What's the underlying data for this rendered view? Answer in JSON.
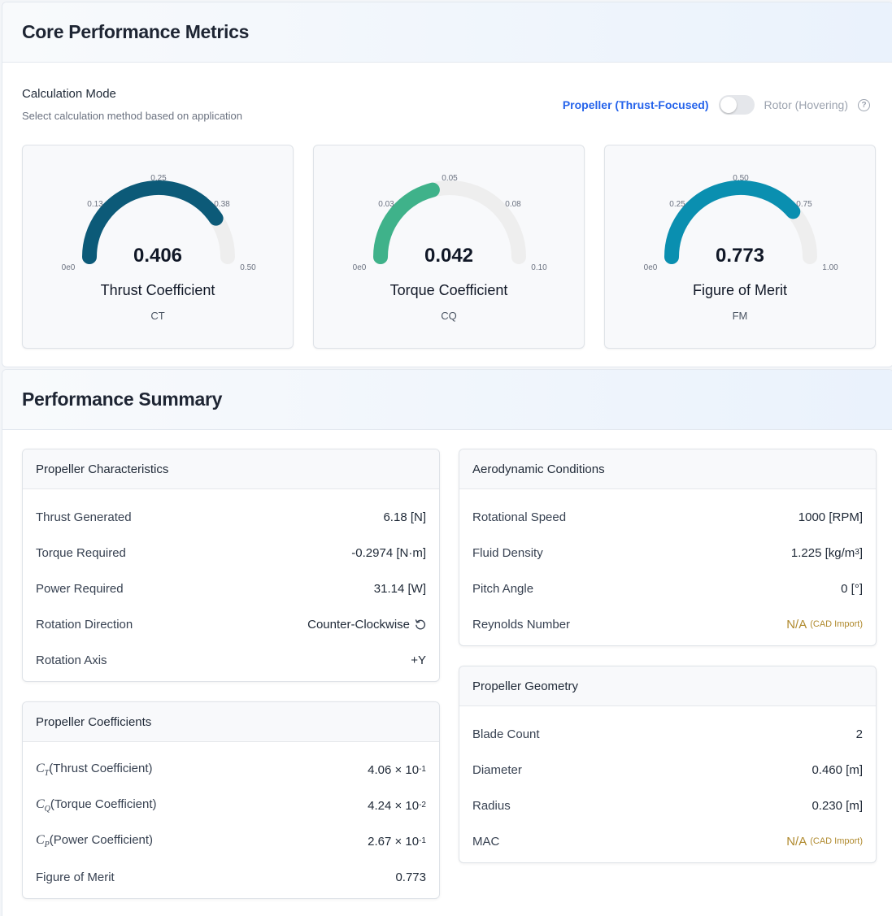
{
  "core": {
    "title": "Core Performance Metrics",
    "calc_mode_label": "Calculation Mode",
    "calc_mode_desc": "Select calculation method based on application",
    "mode_left": "Propeller (Thrust-Focused)",
    "mode_right": "Rotor (Hovering)",
    "help_glyph": "?"
  },
  "gauges": [
    {
      "value": "0.406",
      "name": "Thrust Coefficient",
      "symbol": "CT",
      "fraction": 0.812,
      "color": "#0c5a78",
      "ticks": [
        "0e0",
        "0.13",
        "0.25",
        "0.38",
        "0.50"
      ]
    },
    {
      "value": "0.042",
      "name": "Torque Coefficient",
      "symbol": "CQ",
      "fraction": 0.42,
      "color": "#3fb28a",
      "ticks": [
        "0e0",
        "0.03",
        "0.05",
        "0.08",
        "0.10"
      ]
    },
    {
      "value": "0.773",
      "name": "Figure of Merit",
      "symbol": "FM",
      "fraction": 0.773,
      "color": "#0a8fb0",
      "ticks": [
        "0e0",
        "0.25",
        "0.50",
        "0.75",
        "1.00"
      ]
    }
  ],
  "summary": {
    "title": "Performance Summary",
    "characteristics": {
      "title": "Propeller Characteristics",
      "thrust_label": "Thrust Generated",
      "thrust_value": "6.18 [N]",
      "torque_label": "Torque Required",
      "torque_value": "-0.2974 [N·m]",
      "power_label": "Power Required",
      "power_value": "31.14 [W]",
      "direction_label": "Rotation Direction",
      "direction_value": "Counter-Clockwise",
      "axis_label": "Rotation Axis",
      "axis_value": "+Y"
    },
    "coefficients": {
      "title": "Propeller Coefficients",
      "ct_sym": "C",
      "ct_sub": "T",
      "ct_label": "(Thrust Coefficient)",
      "ct_mant": "4.06 × 10",
      "ct_exp": "-1",
      "cq_sym": "C",
      "cq_sub": "Q",
      "cq_label": "(Torque Coefficient)",
      "cq_mant": "4.24 × 10",
      "cq_exp": "-2",
      "cp_sym": "C",
      "cp_sub": "P",
      "cp_label": "(Power Coefficient)",
      "cp_mant": "2.67 × 10",
      "cp_exp": "-1",
      "fm_label": "Figure of Merit",
      "fm_value": "0.773"
    },
    "aero": {
      "title": "Aerodynamic Conditions",
      "speed_label": "Rotational Speed",
      "speed_value": "1000 [RPM]",
      "density_label": "Fluid Density",
      "density_value": "1.225 [kg/m",
      "density_exp": "3",
      "density_close": "]",
      "pitch_label": "Pitch Angle",
      "pitch_value": "0 [°]",
      "reynolds_label": "Reynolds Number",
      "reynolds_value": "N/A",
      "reynolds_note": "(CAD Import)"
    },
    "geometry": {
      "title": "Propeller Geometry",
      "blades_label": "Blade Count",
      "blades_value": "2",
      "diameter_label": "Diameter",
      "diameter_value": "0.460 [m]",
      "radius_label": "Radius",
      "radius_value": "0.230 [m]",
      "mac_label": "MAC",
      "mac_value": "N/A",
      "mac_note": "(CAD Import)"
    }
  }
}
